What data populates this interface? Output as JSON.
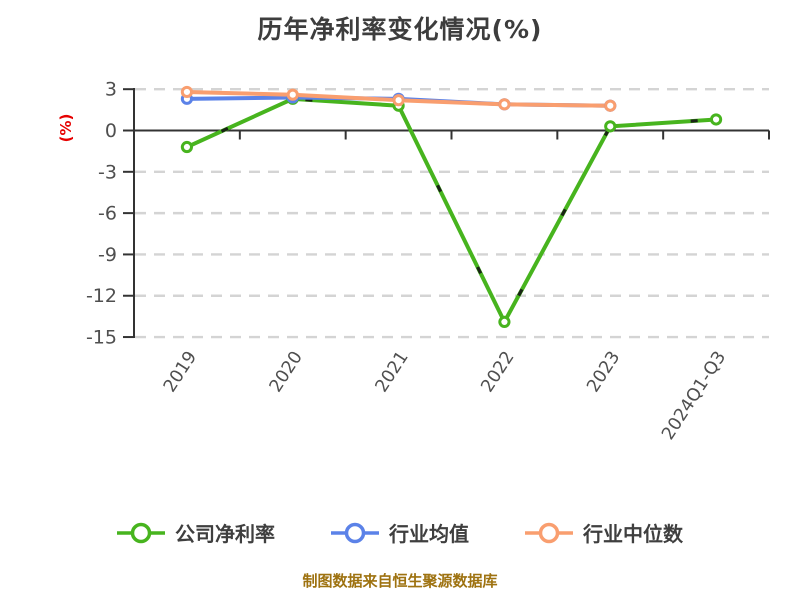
{
  "title": "历年净利率变化情况(%)",
  "footer": "制图数据来自恒生聚源数据库",
  "colors": {
    "title_text": "#3d3d3d",
    "axis_line": "#333333",
    "tick_label": "#4f4f4f",
    "grid_line": "#d4d4d4",
    "y_axis_label_red": "#e60000",
    "footer_text": "#9e7210",
    "legend_text": "#3f3f3f",
    "marker_fill": "#ffffff",
    "series_dash_accent": "#141414"
  },
  "chart_data": {
    "type": "line",
    "title": "历年净利率变化情况(%)",
    "ylabel": "(%)",
    "categories": [
      "2019",
      "2020",
      "2021",
      "2022",
      "2023",
      "2024Q1-Q3"
    ],
    "series": [
      {
        "key": "company-net-margin",
        "name": "公司净利率",
        "color": "#47b41e",
        "values": [
          -1.2,
          2.3,
          1.8,
          -13.9,
          0.3,
          0.8
        ]
      },
      {
        "key": "industry-mean",
        "name": "行业均值",
        "color": "#5b82e8",
        "values": [
          2.3,
          2.4,
          2.3,
          1.9,
          1.8,
          null
        ]
      },
      {
        "key": "industry-median",
        "name": "行业中位数",
        "color": "#f99e6f",
        "values": [
          2.8,
          2.6,
          2.2,
          1.9,
          1.8,
          null
        ]
      }
    ],
    "yticks": [
      3,
      0,
      -3,
      -6,
      -9,
      -12,
      -15
    ],
    "ylim": [
      -15,
      3
    ],
    "grid": true,
    "gridline_style": "dashed",
    "x_tick_label_rotation_deg": -57,
    "legend_position": "bottom"
  }
}
